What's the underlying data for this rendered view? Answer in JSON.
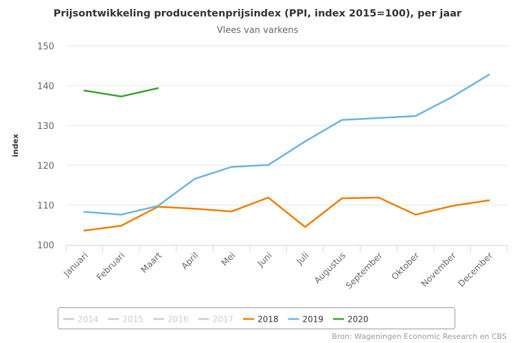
{
  "chart_data": {
    "type": "line",
    "title": "Prijsontwikkeling producentenprijsindex (PPI, index 2015=100), per jaar",
    "subtitle": "Vlees van varkens",
    "xlabel": "",
    "ylabel": "index",
    "ylim": [
      100,
      150
    ],
    "yticks": [
      100,
      110,
      120,
      130,
      140,
      150
    ],
    "grid": true,
    "legend_position": "bottom",
    "categories": [
      "Januari",
      "Februari",
      "Maart",
      "April",
      "Mei",
      "Juni",
      "Juli",
      "Augustus",
      "September",
      "Oktober",
      "November",
      "December"
    ],
    "series": [
      {
        "name": "2014",
        "color": "#cccccc",
        "visible": false,
        "values": []
      },
      {
        "name": "2015",
        "color": "#cccccc",
        "visible": false,
        "values": []
      },
      {
        "name": "2016",
        "color": "#cccccc",
        "visible": false,
        "values": []
      },
      {
        "name": "2017",
        "color": "#cccccc",
        "visible": false,
        "values": []
      },
      {
        "name": "2018",
        "color": "#f07d00",
        "visible": true,
        "values": [
          103.6,
          104.8,
          109.6,
          109.1,
          108.4,
          111.9,
          104.5,
          111.7,
          111.9,
          107.6,
          109.8,
          111.2
        ]
      },
      {
        "name": "2019",
        "color": "#6cb2e0",
        "visible": true,
        "values": [
          108.3,
          107.6,
          109.8,
          116.6,
          119.6,
          120.1,
          126.0,
          131.4,
          131.9,
          132.4,
          137.2,
          142.8
        ]
      },
      {
        "name": "2020",
        "color": "#3aa02e",
        "visible": true,
        "values": [
          138.8,
          137.3,
          139.4
        ]
      }
    ],
    "source": "Bron: Wageningen Economic Research en CBS"
  }
}
